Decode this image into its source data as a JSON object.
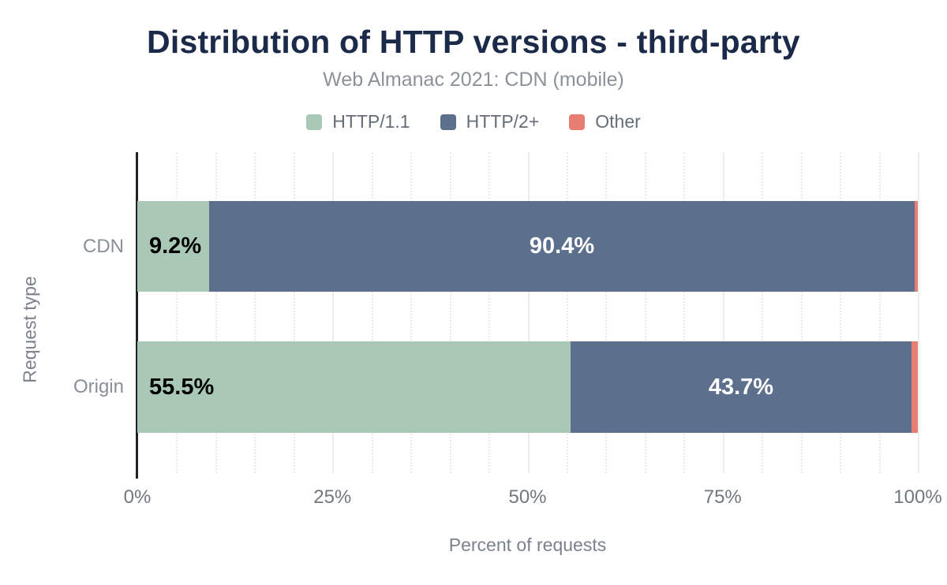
{
  "title": "Distribution of HTTP versions - third-party",
  "subtitle": "Web Almanac 2021: CDN (mobile)",
  "axes": {
    "x_title": "Percent of requests",
    "y_title": "Request type"
  },
  "chart_data": {
    "type": "bar",
    "orientation": "horizontal",
    "stacked": true,
    "title": "Distribution of HTTP versions - third-party",
    "subtitle": "Web Almanac 2021: CDN (mobile)",
    "xlabel": "Percent of requests",
    "ylabel": "Request type",
    "xlim": [
      0,
      100
    ],
    "x_tick_labels": [
      "0%",
      "25%",
      "50%",
      "75%",
      "100%"
    ],
    "categories": [
      "CDN",
      "Origin"
    ],
    "series": [
      {
        "name": "HTTP/1.1",
        "color": "#a9c8b6",
        "values": [
          9.2,
          55.5
        ],
        "labels": [
          "9.2%",
          "55.5%"
        ],
        "label_color": "#000000"
      },
      {
        "name": "HTTP/2+",
        "color": "#5c6f8c",
        "values": [
          90.4,
          43.7
        ],
        "labels": [
          "90.4%",
          "43.7%"
        ],
        "label_color": "#ffffff"
      },
      {
        "name": "Other",
        "color": "#e87d72",
        "values": [
          0.4,
          0.8
        ],
        "labels": [
          "",
          ""
        ],
        "label_color": "#ffffff"
      }
    ],
    "legend_position": "top",
    "grid": {
      "major_x": [
        25,
        50,
        75,
        100
      ],
      "minor_step_x": 5,
      "minor_style": "dotted"
    }
  },
  "colors": {
    "background": "#ffffff",
    "title": "#1b2a49",
    "subtitle": "#8b9299",
    "legend_text": "#656d78",
    "axis_line": "#202124",
    "tick_label": "#70787f",
    "category_label": "#8a9097",
    "axis_title": "#7b828c",
    "grid_major": "#ededee",
    "grid_minor": "#e8eaec"
  }
}
